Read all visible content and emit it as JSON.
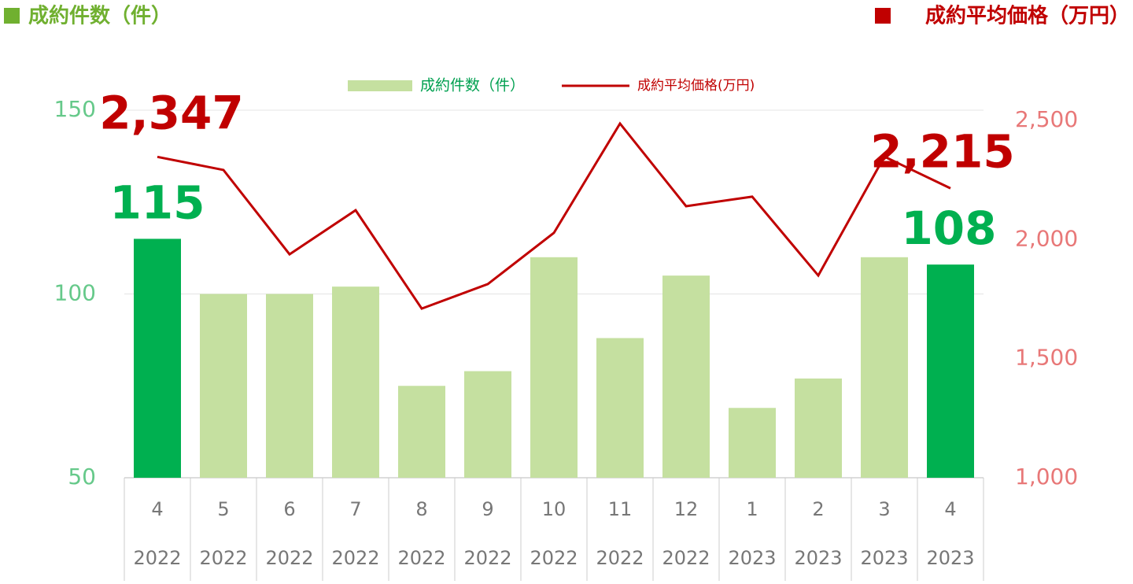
{
  "chart_data": {
    "type": "bar_line",
    "left_header": "成約件数（件）",
    "right_header": "成約平均価格（万円）",
    "categories": [
      "4",
      "5",
      "6",
      "7",
      "8",
      "9",
      "10",
      "11",
      "12",
      "1",
      "2",
      "3",
      "4"
    ],
    "category_years": [
      "2022",
      "2022",
      "2022",
      "2022",
      "2022",
      "2022",
      "2022",
      "2022",
      "2022",
      "2023",
      "2023",
      "2023",
      "2023"
    ],
    "series": [
      {
        "name": "成約件数（件）",
        "type": "bar",
        "color": "#c5e0a0",
        "colors": [
          "#00b050",
          "#c5e0a0",
          "#c5e0a0",
          "#c5e0a0",
          "#c5e0a0",
          "#c5e0a0",
          "#c5e0a0",
          "#c5e0a0",
          "#c5e0a0",
          "#c5e0a0",
          "#c5e0a0",
          "#c5e0a0",
          "#00b050"
        ],
        "values": [
          115,
          100,
          100,
          102,
          75,
          79,
          110,
          88,
          105,
          69,
          77,
          110,
          108
        ],
        "value_labels": [
          "115",
          null,
          null,
          null,
          null,
          null,
          null,
          null,
          null,
          null,
          null,
          null,
          "108"
        ],
        "label_color": "#00b050"
      },
      {
        "name": "成約平均価格(万円)",
        "type": "line",
        "axis": "y2",
        "color": "#c00000",
        "values": [
          2347,
          2292,
          1938,
          2123,
          1710,
          1813,
          2028,
          2487,
          2140,
          2180,
          1849,
          2348,
          2215
        ],
        "value_labels": [
          "2,347",
          null,
          null,
          null,
          null,
          null,
          null,
          null,
          null,
          null,
          null,
          null,
          "2,215"
        ],
        "label_color": "#c00000"
      }
    ],
    "ylim": [
      50,
      150
    ],
    "yticks": [
      50,
      100,
      150
    ],
    "ytick_color": "#66c98a",
    "y2lim": [
      1000,
      2500
    ],
    "y2ticks": [
      {
        "value": 1000,
        "label": "1,000"
      },
      {
        "value": 1500,
        "label": "1,500"
      },
      {
        "value": 2000,
        "label": "2,000"
      },
      {
        "value": 2500,
        "label": "2,500"
      }
    ],
    "y2tick_color": "#e87878",
    "grid": true
  }
}
